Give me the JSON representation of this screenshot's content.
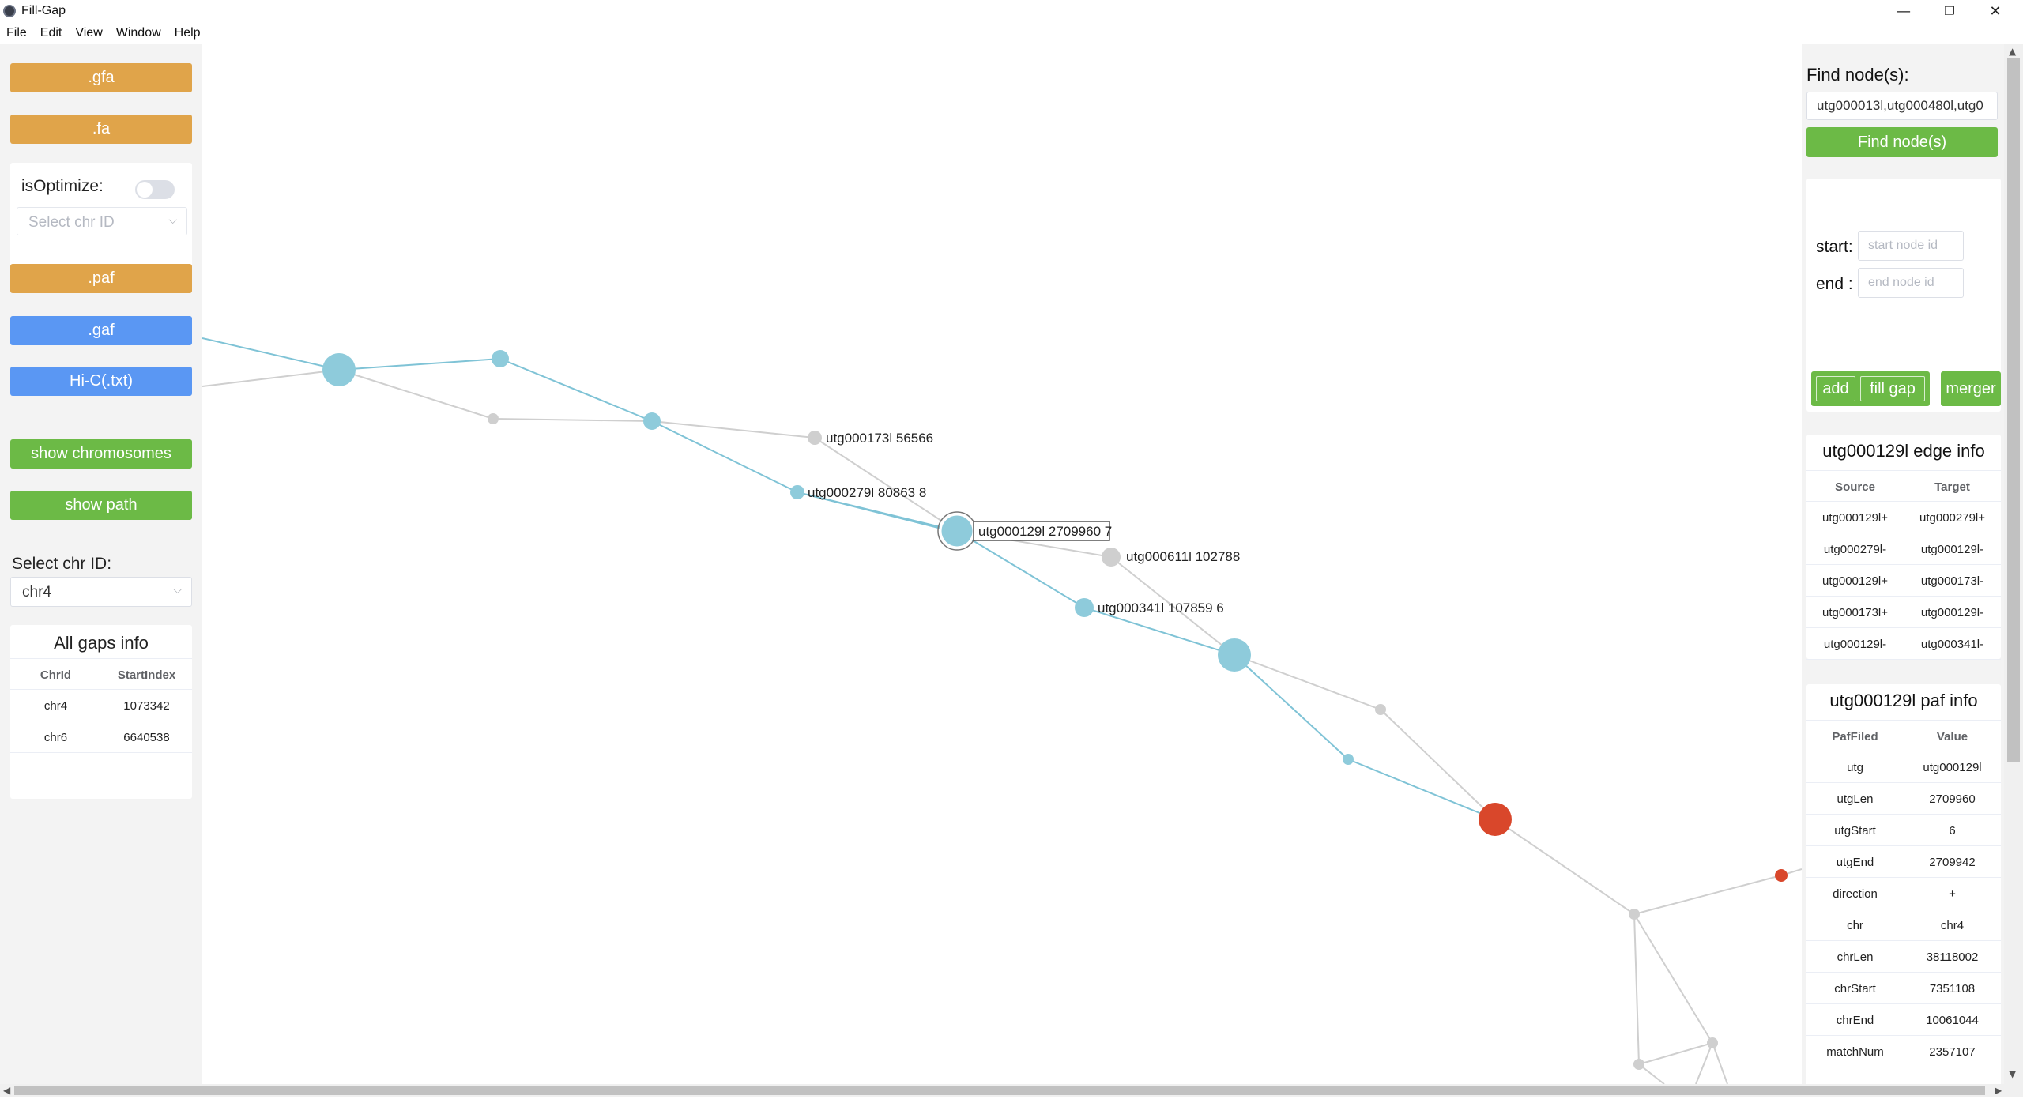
{
  "window": {
    "title": "Fill-Gap",
    "minimize_glyph": "—",
    "restore_glyph": "❐",
    "close_glyph": "✕"
  },
  "menu": [
    "File",
    "Edit",
    "View",
    "Window",
    "Help"
  ],
  "left_panel": {
    "buttons": {
      "gfa": ".gfa",
      "fa": ".fa",
      "paf": ".paf",
      "gaf": ".gaf",
      "hic": "Hi-C(.txt)",
      "show_chromosomes": "show chromosomes",
      "show_path": "show path"
    },
    "optimize": {
      "label": "isOptimize:",
      "enabled": false,
      "select_placeholder": "Select chr ID"
    },
    "chr_select": {
      "label": "Select chr ID:",
      "value": "chr4"
    },
    "gaps": {
      "title": "All gaps info",
      "columns": [
        "ChrId",
        "StartIndex"
      ],
      "rows": [
        [
          "chr4",
          "1073342"
        ],
        [
          "chr6",
          "6640538"
        ]
      ]
    }
  },
  "graph": {
    "labels": {
      "n173": "utg000173l  56566",
      "n279": "utg000279l  80863  8",
      "n129": "utg000129l  2709960  7",
      "n611": "utg000611l  102788",
      "n341": "utg000341l  107859  6"
    },
    "colors": {
      "active_node": "#8ecbdb",
      "active_edge": "#7fc3d6",
      "inactive": "#cfcfcf",
      "gap_node": "#d9472b"
    }
  },
  "right_panel": {
    "find": {
      "label": "Find node(s):",
      "value": "utg000013l,utg000480l,utg0",
      "button": "Find node(s)"
    },
    "path": {
      "start_label": "start:",
      "start_placeholder": "start node id",
      "end_label": "end :",
      "end_placeholder": "end node id",
      "add": "add",
      "fill_gap": "fill gap",
      "merger": "merger"
    },
    "edge_info": {
      "title": "utg000129l edge info",
      "columns": [
        "Source",
        "Target"
      ],
      "rows": [
        [
          "utg000129l+",
          "utg000279l+"
        ],
        [
          "utg000279l-",
          "utg000129l-"
        ],
        [
          "utg000129l+",
          "utg000173l-"
        ],
        [
          "utg000173l+",
          "utg000129l-"
        ],
        [
          "utg000129l-",
          "utg000341l-"
        ]
      ]
    },
    "paf_info": {
      "title": "utg000129l paf info",
      "columns": [
        "PafFiled",
        "Value"
      ],
      "rows": [
        [
          "utg",
          "utg000129l"
        ],
        [
          "utgLen",
          "2709960"
        ],
        [
          "utgStart",
          "6"
        ],
        [
          "utgEnd",
          "2709942"
        ],
        [
          "direction",
          "+"
        ],
        [
          "chr",
          "chr4"
        ],
        [
          "chrLen",
          "38118002"
        ],
        [
          "chrStart",
          "7351108"
        ],
        [
          "chrEnd",
          "10061044"
        ],
        [
          "matchNum",
          "2357107"
        ]
      ]
    }
  }
}
